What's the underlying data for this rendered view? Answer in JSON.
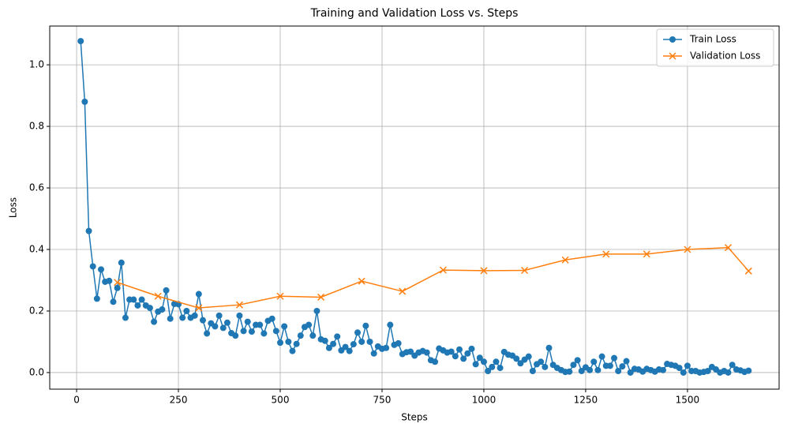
{
  "chart_data": {
    "type": "line",
    "title": "Training and Validation Loss vs. Steps",
    "x_label": "Steps",
    "y_label": "Loss",
    "xlim": [
      -66,
      1725
    ],
    "ylim": [
      -0.054,
      1.126
    ],
    "xticks": [
      0,
      250,
      500,
      750,
      1000,
      1250,
      1500
    ],
    "yticks": [
      {
        "value": 0,
        "label": "0.0"
      },
      0.2,
      0.4,
      0.6,
      0.8,
      {
        "value": 1,
        "label": "1.0"
      }
    ],
    "grid": true,
    "legend": "upper right",
    "series": [
      {
        "name": "Train Loss",
        "color": "#1f77b4",
        "marker": "o",
        "x": [
          10,
          20,
          30,
          40,
          50,
          60,
          70,
          80,
          90,
          100,
          110,
          120,
          130,
          140,
          150,
          160,
          170,
          180,
          190,
          200,
          210,
          220,
          230,
          240,
          250,
          260,
          270,
          280,
          290,
          300,
          310,
          320,
          330,
          340,
          350,
          360,
          370,
          380,
          390,
          400,
          410,
          420,
          430,
          440,
          450,
          460,
          470,
          480,
          490,
          500,
          510,
          520,
          530,
          540,
          550,
          560,
          570,
          580,
          590,
          600,
          610,
          620,
          630,
          640,
          650,
          660,
          670,
          680,
          690,
          700,
          710,
          720,
          730,
          740,
          750,
          760,
          770,
          780,
          790,
          800,
          810,
          820,
          830,
          840,
          850,
          860,
          870,
          880,
          890,
          900,
          910,
          920,
          930,
          940,
          950,
          960,
          970,
          980,
          990,
          1000,
          1010,
          1020,
          1030,
          1040,
          1050,
          1060,
          1070,
          1080,
          1090,
          1100,
          1110,
          1120,
          1130,
          1140,
          1150,
          1160,
          1170,
          1180,
          1190,
          1200,
          1210,
          1220,
          1230,
          1240,
          1250,
          1260,
          1270,
          1280,
          1290,
          1300,
          1310,
          1320,
          1330,
          1340,
          1350,
          1360,
          1370,
          1380,
          1390,
          1400,
          1410,
          1420,
          1430,
          1440,
          1450,
          1460,
          1470,
          1480,
          1490,
          1500,
          1510,
          1520,
          1530,
          1540,
          1550,
          1560,
          1570,
          1580,
          1590,
          1600,
          1610,
          1620,
          1630,
          1640,
          1650
        ],
        "values": [
          1.077,
          0.88,
          0.46,
          0.345,
          0.24,
          0.335,
          0.295,
          0.298,
          0.23,
          0.275,
          0.357,
          0.178,
          0.237,
          0.237,
          0.218,
          0.237,
          0.218,
          0.21,
          0.165,
          0.198,
          0.205,
          0.267,
          0.175,
          0.223,
          0.222,
          0.178,
          0.2,
          0.178,
          0.185,
          0.255,
          0.17,
          0.127,
          0.16,
          0.15,
          0.185,
          0.145,
          0.162,
          0.128,
          0.12,
          0.185,
          0.135,
          0.165,
          0.133,
          0.155,
          0.155,
          0.127,
          0.168,
          0.175,
          0.135,
          0.097,
          0.15,
          0.1,
          0.07,
          0.093,
          0.12,
          0.148,
          0.155,
          0.12,
          0.2,
          0.108,
          0.103,
          0.08,
          0.093,
          0.117,
          0.072,
          0.083,
          0.07,
          0.092,
          0.13,
          0.1,
          0.152,
          0.1,
          0.062,
          0.085,
          0.077,
          0.08,
          0.155,
          0.09,
          0.095,
          0.06,
          0.066,
          0.068,
          0.055,
          0.065,
          0.07,
          0.065,
          0.04,
          0.035,
          0.078,
          0.072,
          0.065,
          0.068,
          0.053,
          0.075,
          0.045,
          0.062,
          0.077,
          0.027,
          0.048,
          0.035,
          0.005,
          0.018,
          0.035,
          0.015,
          0.067,
          0.058,
          0.055,
          0.045,
          0.03,
          0.042,
          0.052,
          0.005,
          0.027,
          0.035,
          0.018,
          0.08,
          0.025,
          0.015,
          0.008,
          0.002,
          0.003,
          0.025,
          0.04,
          0.005,
          0.017,
          0.008,
          0.035,
          0.008,
          0.052,
          0.022,
          0.022,
          0.047,
          0.005,
          0.02,
          0.037,
          0,
          0.012,
          0.01,
          0.003,
          0.012,
          0.008,
          0.003,
          0.01,
          0.008,
          0.028,
          0.025,
          0.022,
          0.015,
          0,
          0.022,
          0.005,
          0.005,
          0,
          0.002,
          0.005,
          0.018,
          0.01,
          0,
          0.005,
          0,
          0.025,
          0.01,
          0.007,
          0.002,
          0.006
        ]
      },
      {
        "name": "Validation Loss",
        "color": "#ff7f0e",
        "marker": "x",
        "x": [
          100,
          200,
          300,
          400,
          500,
          600,
          700,
          800,
          900,
          1000,
          1100,
          1200,
          1300,
          1400,
          1500,
          1600,
          1650
        ],
        "values": [
          0.293,
          0.248,
          0.21,
          0.22,
          0.248,
          0.245,
          0.297,
          0.264,
          0.333,
          0.331,
          0.332,
          0.366,
          0.385,
          0.385,
          0.4,
          0.406,
          0.33
        ]
      }
    ]
  }
}
